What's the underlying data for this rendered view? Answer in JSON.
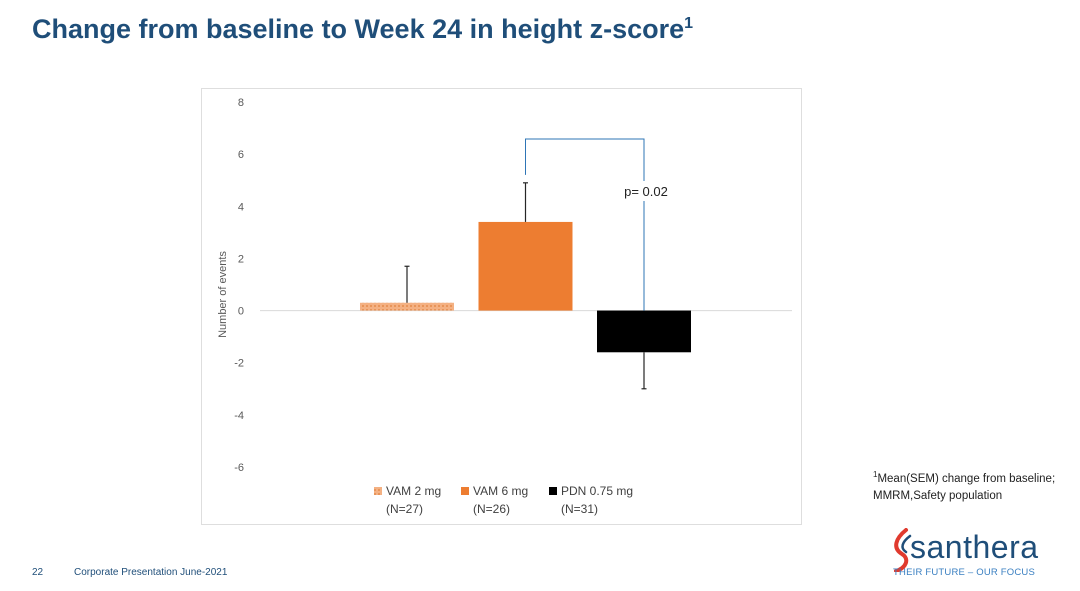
{
  "slide": {
    "title": "Change from baseline to Week 24 in height z-score",
    "title_sup": "1",
    "footnote_sup": "1",
    "footnote": "Mean(SEM) change from baseline; MMRM,Safety population",
    "page_number": "22",
    "footer": "Corporate Presentation June-2021",
    "logo_text": "santhera",
    "logo_tagline": "THEIR FUTURE – OUR FOCUS"
  },
  "colors": {
    "title": "#1f4e79",
    "vam2": "#f4b183",
    "vam6": "#ed7d31",
    "pdn": "#000000",
    "bracket": "#2e75b6",
    "logo_red": "#e03a2e"
  },
  "chart_data": {
    "type": "bar",
    "title": "",
    "ylabel": "Number of events",
    "xlabel": "",
    "ylim": [
      -6,
      8
    ],
    "yticks": [
      8,
      6,
      4,
      2,
      0,
      -2,
      -4,
      -6
    ],
    "grid": false,
    "legend_position": "bottom",
    "series": [
      {
        "name": "VAM 2 mg",
        "n": "(N=27)",
        "value": 0.3,
        "error": 1.4,
        "color": "#f4b183",
        "pattern": "dotted"
      },
      {
        "name": "VAM 6 mg",
        "n": "(N=26)",
        "value": 3.4,
        "error": 1.5,
        "color": "#ed7d31",
        "pattern": "solid"
      },
      {
        "name": "PDN 0.75 mg",
        "n": "(N=31)",
        "value": -1.6,
        "error": 1.4,
        "color": "#000000",
        "pattern": "solid"
      }
    ],
    "annotation": {
      "text": "p= 0.02",
      "between": [
        1,
        2
      ]
    }
  }
}
